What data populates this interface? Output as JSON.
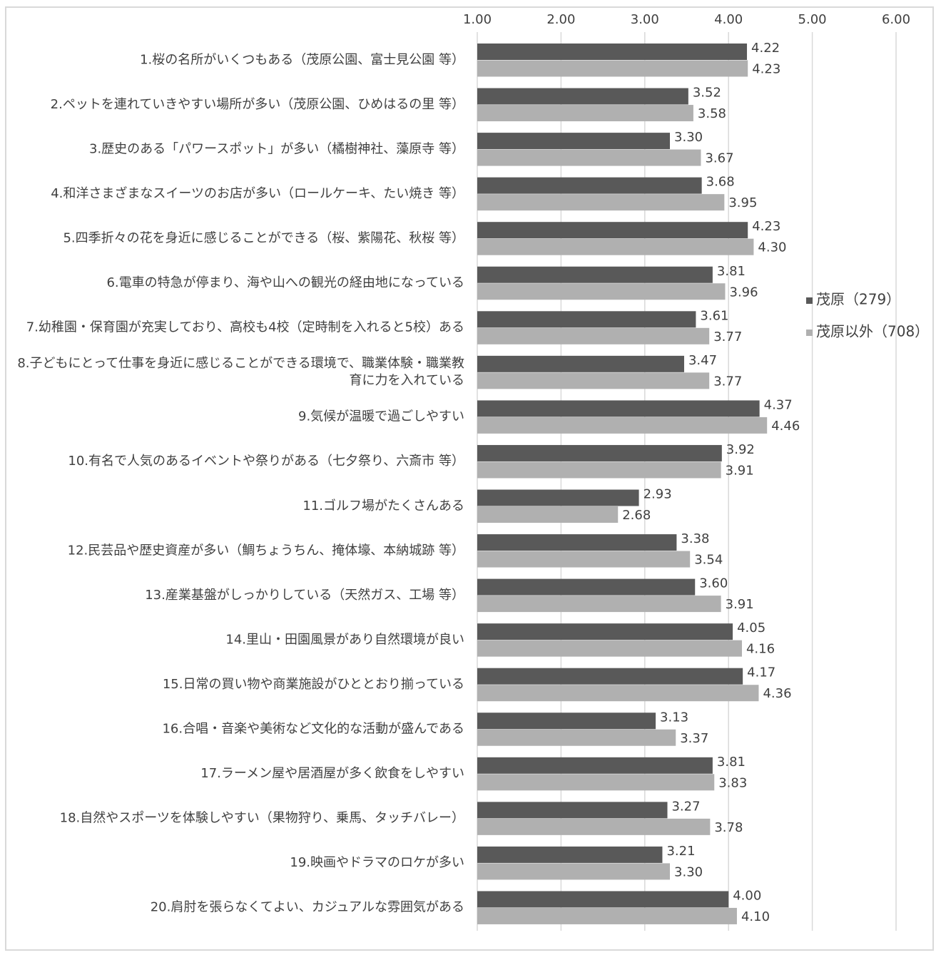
{
  "chart_data": {
    "type": "barh",
    "categories": [
      "1.桜の名所がいくつもある（茂原公園、富士見公園 等）",
      "2.ペットを連れていきやすい場所が多い（茂原公園、ひめはるの里 等）",
      "3.歴史のある「パワースポット」が多い（橘樹神社、藻原寺 等）",
      "4.和洋さまざまなスイーツのお店が多い（ロールケーキ、たい焼き 等）",
      "5.四季折々の花を身近に感じることができる（桜、紫陽花、秋桜 等）",
      "6.電車の特急が停まり、海や山への観光の経由地になっている",
      "7.幼稚園・保育園が充実しており、高校も4校（定時制を入れると5校）ある",
      "8.子どもにとって仕事を身近に感じることができる環境で、職業体験・職業教育に力を入れている",
      "9.気候が温暖で過ごしやすい",
      "10.有名で人気のあるイベントや祭りがある（七夕祭り、六斎市 等）",
      "11.ゴルフ場がたくさんある",
      "12.民芸品や歴史資産が多い（鯛ちょうちん、掩体壕、本納城跡 等）",
      "13.産業基盤がしっかりしている（天然ガス、工場 等）",
      "14.里山・田園風景があり自然環境が良い",
      "15.日常の買い物や商業施設がひととおり揃っている",
      "16.合唱・音楽や美術など文化的な活動が盛んである",
      "17.ラーメン屋や居酒屋が多く飲食をしやすい",
      "18.自然やスポーツを体験しやすい（果物狩り、乗馬、タッチバレー）",
      "19.映画やドラマのロケが多い",
      "20.肩肘を張らなくてよい、カジュアルな雰囲気がある"
    ],
    "series": [
      {
        "name": "茂原（279）",
        "color": "#595959",
        "values": [
          4.22,
          3.52,
          3.3,
          3.68,
          4.23,
          3.81,
          3.61,
          3.47,
          4.37,
          3.92,
          2.93,
          3.38,
          3.6,
          4.05,
          4.17,
          3.13,
          3.81,
          3.27,
          3.21,
          4.0
        ],
        "value_labels": [
          "4.22",
          "3.52",
          "3.30",
          "3.68",
          "4.23",
          "3.81",
          "3.61",
          "3.47",
          "4.37",
          "3.92",
          "2.93",
          "3.38",
          "3.60",
          "4.05",
          "4.17",
          "3.13",
          "3.81",
          "3.27",
          "3.21",
          "4.00"
        ]
      },
      {
        "name": "茂原以外（708）",
        "color": "#b0b0b0",
        "values": [
          4.23,
          3.58,
          3.67,
          3.95,
          4.3,
          3.96,
          3.77,
          3.77,
          4.46,
          3.91,
          2.68,
          3.54,
          3.91,
          4.16,
          4.36,
          3.37,
          3.83,
          3.78,
          3.3,
          4.1
        ],
        "value_labels": [
          "4.23",
          "3.58",
          "3.67",
          "3.95",
          "4.30",
          "3.96",
          "3.77",
          "3.77",
          "4.46",
          "3.91",
          "2.68",
          "3.54",
          "3.91",
          "4.16",
          "4.36",
          "3.37",
          "3.83",
          "3.78",
          "3.30",
          "4.10"
        ]
      }
    ],
    "xlim": [
      1,
      6
    ],
    "xticks": [
      {
        "value": 1,
        "label": "1.00"
      },
      {
        "value": 2,
        "label": "2.00"
      },
      {
        "value": 3,
        "label": "3.00"
      },
      {
        "value": 4,
        "label": "4.00"
      },
      {
        "value": 5,
        "label": "5.00"
      },
      {
        "value": 6,
        "label": "6.00"
      }
    ],
    "grid": true,
    "legend": "right"
  }
}
